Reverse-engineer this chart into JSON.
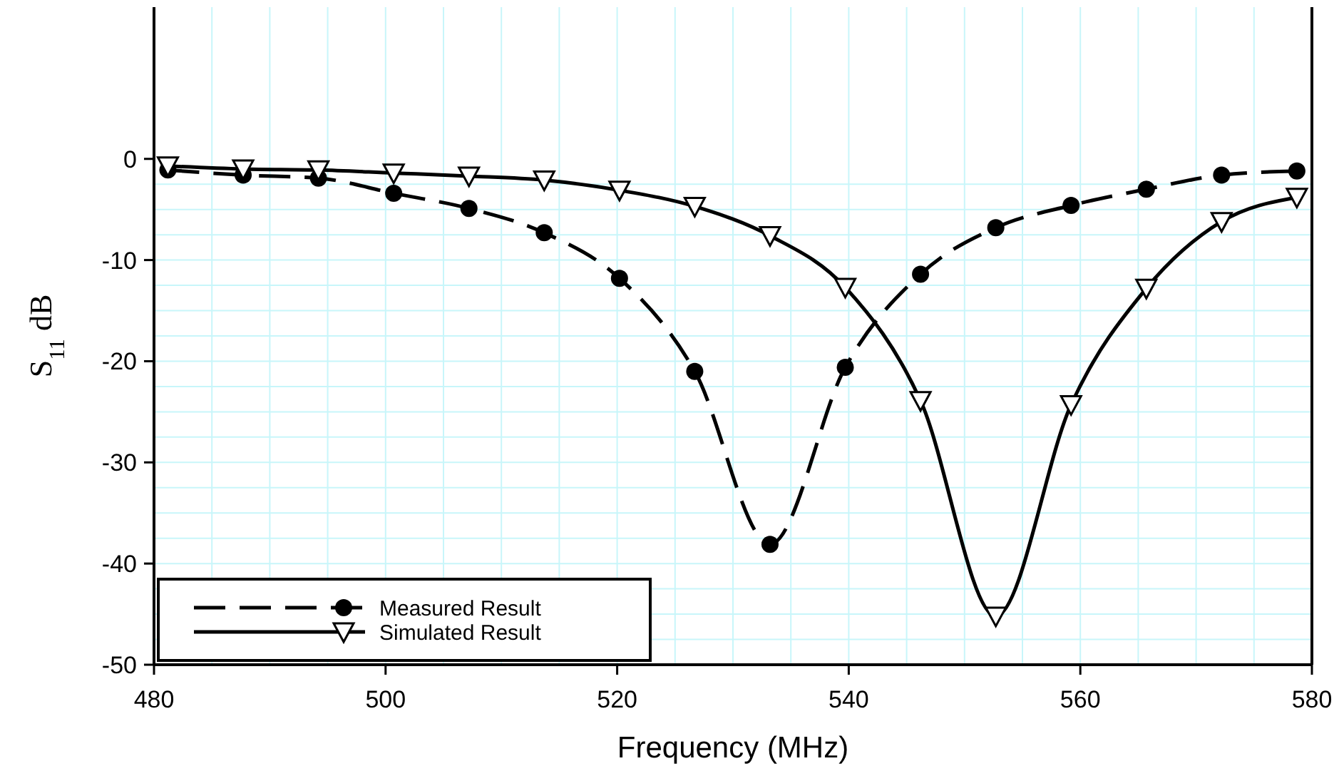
{
  "chart_data": {
    "type": "line",
    "xlabel": "Frequency (MHz)",
    "ylabel": "S$_{11}$ dB",
    "x": [
      481.2,
      487.7,
      494.2,
      500.7,
      507.2,
      513.7,
      520.2,
      526.7,
      533.2,
      539.7,
      546.2,
      552.7,
      559.2,
      565.7,
      572.2,
      578.7
    ],
    "series": [
      {
        "name": "Measured Result",
        "color": "#000000",
        "line_style": "dashed",
        "marker": "circle",
        "values": [
          -1.1,
          -1.6,
          -1.9,
          -3.4,
          -4.9,
          -7.3,
          -11.8,
          -21.0,
          -38.1,
          -20.6,
          -11.4,
          -6.8,
          -4.6,
          -3.0,
          -1.6,
          -1.2
        ]
      },
      {
        "name": "Simulated Result",
        "color": "#000000",
        "line_style": "solid",
        "marker": "triangle",
        "values": [
          -0.7,
          -1.0,
          -1.1,
          -1.4,
          -1.7,
          -2.1,
          -3.1,
          -4.7,
          -7.6,
          -12.7,
          -23.9,
          -45.2,
          -24.3,
          -12.8,
          -6.2,
          -3.8
        ]
      }
    ],
    "xlim": [
      480,
      580
    ],
    "xticks": [
      480,
      500,
      520,
      540,
      560,
      580
    ],
    "ylim": [
      -50,
      15
    ],
    "yticks": [
      -50,
      -40,
      -30,
      -20,
      -10,
      0
    ],
    "grid": true,
    "legend": "bottom left"
  }
}
